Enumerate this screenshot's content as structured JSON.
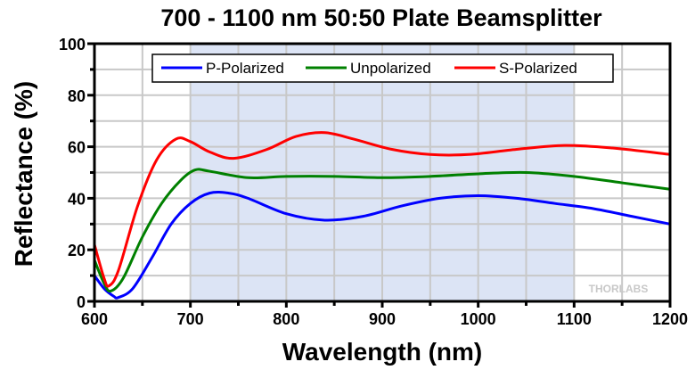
{
  "chart_data": {
    "type": "line",
    "title": "700 - 1100 nm 50:50 Plate Beamsplitter",
    "xlabel": "Wavelength (nm)",
    "ylabel": "Reflectance (%)",
    "xlim": [
      600,
      1200
    ],
    "ylim": [
      0,
      100
    ],
    "xticks": [
      600,
      700,
      800,
      900,
      1000,
      1100,
      1200
    ],
    "yticks": [
      0,
      20,
      40,
      60,
      80,
      100
    ],
    "xtick_labels": [
      "600",
      "700",
      "800",
      "900",
      "1000",
      "1100",
      "1200"
    ],
    "ytick_labels": [
      "0",
      "20",
      "40",
      "60",
      "80",
      "100"
    ],
    "grid": true,
    "legend_position": "top-center",
    "highlight_band": {
      "from": 700,
      "to": 1100,
      "color": "#dce4f5"
    },
    "watermark": "THORLABS",
    "series": [
      {
        "name": "P-Polarized",
        "color": "#0000ff",
        "x": [
          600,
          610,
          620,
          625,
          640,
          660,
          680,
          700,
          720,
          740,
          760,
          800,
          840,
          880,
          920,
          960,
          1000,
          1040,
          1080,
          1120,
          1160,
          1200
        ],
        "y": [
          10,
          5,
          2,
          1.5,
          5,
          17,
          30,
          38,
          42,
          42,
          40,
          34,
          31.5,
          33,
          37,
          40,
          41,
          40,
          38,
          36,
          33,
          30
        ]
      },
      {
        "name": "Unpolarized",
        "color": "#008000",
        "x": [
          600,
          610,
          617,
          630,
          650,
          670,
          690,
          705,
          720,
          760,
          800,
          850,
          900,
          950,
          1000,
          1050,
          1100,
          1150,
          1200
        ],
        "y": [
          16,
          7,
          4,
          9,
          25,
          38,
          47,
          51,
          50.5,
          48,
          48.5,
          48.5,
          48,
          48.5,
          49.5,
          50,
          48.5,
          46,
          43.5
        ]
      },
      {
        "name": "S-Polarized",
        "color": "#ff0000",
        "x": [
          600,
          610,
          615,
          625,
          645,
          665,
          685,
          700,
          720,
          745,
          780,
          810,
          840,
          870,
          910,
          950,
          990,
          1040,
          1090,
          1140,
          1200
        ],
        "y": [
          22,
          9,
          6,
          12,
          37,
          55,
          63,
          62,
          58,
          55.5,
          59,
          64,
          65.5,
          63,
          59,
          57,
          57,
          59,
          60.5,
          59.5,
          57
        ]
      }
    ]
  }
}
